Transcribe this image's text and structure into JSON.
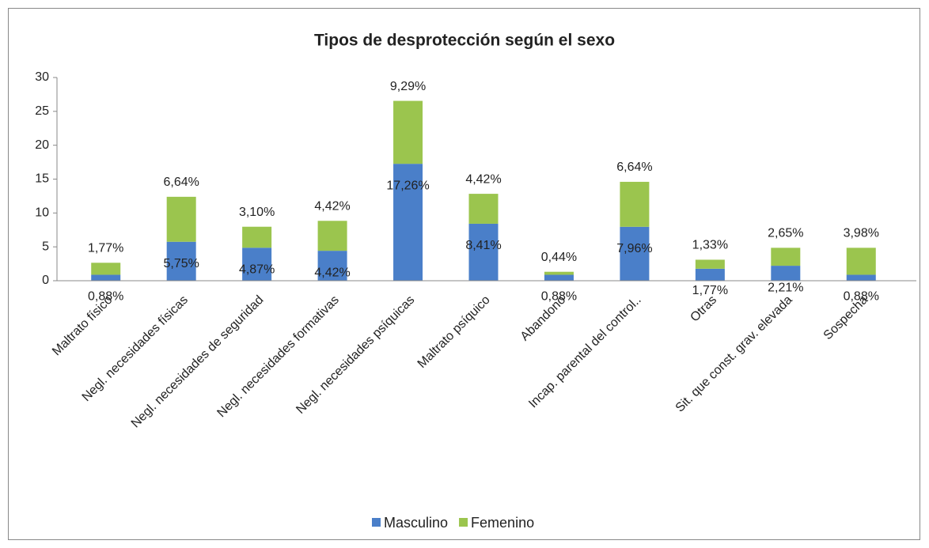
{
  "chart_data": {
    "type": "stacked_bar",
    "title": "Tipos de desprotección según el sexo",
    "categories": [
      "Maltrato físico",
      "Negl. necesidades físicas",
      "Negl. necesidades de seguridad",
      "Negl. necesidades formativas",
      "Negl. necesidades psíquicas",
      "Maltrato psíquico",
      "Abandono",
      "Incap. parental del control..",
      "Otras",
      "Sit. que const. grav. elevada",
      "Sospecha"
    ],
    "series": [
      {
        "name": "Masculino",
        "color": "#4a7fc9",
        "values": [
          0.88,
          5.75,
          4.87,
          4.42,
          17.26,
          8.41,
          0.88,
          7.96,
          1.77,
          2.21,
          0.88
        ],
        "value_labels": [
          "0,88%",
          "5,75%",
          "4,87%",
          "4,42%",
          "17,26%",
          "8,41%",
          "0,88%",
          "7,96%",
          "1,77%",
          "2,21%",
          "0,88%"
        ]
      },
      {
        "name": "Femenino",
        "color": "#9bc54e",
        "values": [
          1.77,
          6.64,
          3.1,
          4.42,
          9.29,
          4.42,
          0.44,
          6.64,
          1.33,
          2.65,
          3.98
        ],
        "value_labels": [
          "1,77%",
          "6,64%",
          "3,10%",
          "4,42%",
          "9,29%",
          "4,42%",
          "0,44%",
          "6,64%",
          "1,33%",
          "2,65%",
          "3,98%"
        ]
      }
    ],
    "ylim": [
      0,
      30
    ],
    "yticks": [
      0,
      5,
      10,
      15,
      20,
      25,
      30
    ],
    "grid": false,
    "legend": "bottom"
  }
}
